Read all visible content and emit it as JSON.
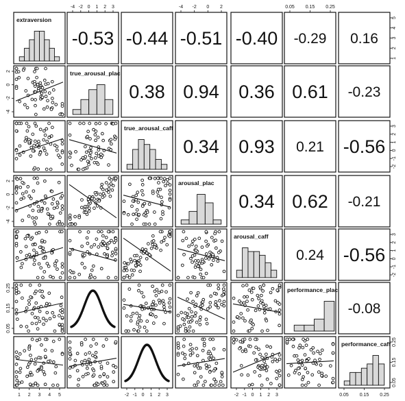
{
  "chart_data": {
    "type": "scatter-matrix",
    "variables": [
      "extraversion",
      "true_arousal_plac",
      "true_arousal_caff",
      "arousal_plac",
      "arousal_caff",
      "performance_plac",
      "performance_caff"
    ],
    "correlations": [
      [
        null,
        "-0.53",
        "-0.44",
        "-0.51",
        "-0.40",
        "-0.29",
        "0.16"
      ],
      [
        null,
        null,
        "0.38",
        "0.94",
        "0.36",
        "0.61",
        "-0.23"
      ],
      [
        null,
        null,
        null,
        "0.34",
        "0.93",
        "0.21",
        "-0.56"
      ],
      [
        null,
        null,
        null,
        null,
        "0.34",
        "0.62",
        "-0.21"
      ],
      [
        null,
        null,
        null,
        null,
        null,
        "0.24",
        "-0.56"
      ],
      [
        null,
        null,
        null,
        null,
        null,
        null,
        "-0.08"
      ]
    ],
    "histograms": [
      [
        1,
        3,
        5,
        7,
        7,
        5,
        3,
        1
      ],
      [
        1,
        3,
        5,
        6,
        3
      ],
      [
        1,
        4,
        6,
        5,
        4,
        2,
        1
      ],
      [
        1,
        3,
        7,
        5,
        1
      ],
      [
        2,
        8,
        7,
        7,
        6,
        4,
        2
      ],
      [
        1,
        1,
        2,
        5
      ],
      [
        1,
        3,
        3,
        4,
        5,
        7,
        5
      ]
    ],
    "axes": {
      "top": [
        {
          "col": 1,
          "ticks": [
            "-4",
            "-2",
            "0",
            "1",
            "2",
            "3"
          ]
        },
        {
          "col": 3,
          "ticks": [
            "-4",
            "-2",
            "0",
            "2"
          ]
        },
        {
          "col": 5,
          "ticks": [
            "0.05",
            "0.15",
            "0.25"
          ]
        }
      ],
      "bottom": [
        {
          "col": 0,
          "ticks": [
            "1",
            "2",
            "3",
            "4",
            "5"
          ]
        },
        {
          "col": 2,
          "ticks": [
            "-2",
            "-1",
            "0",
            "1",
            "2",
            "3"
          ]
        },
        {
          "col": 4,
          "ticks": [
            "-2",
            "-1",
            "0",
            "1",
            "2",
            "3"
          ]
        },
        {
          "col": 6,
          "ticks": [
            "0.05",
            "0.15",
            "0.25"
          ]
        }
      ],
      "left": [
        {
          "row": 1,
          "ticks": [
            "-4",
            "-2",
            "0",
            "2"
          ]
        },
        {
          "row": 3,
          "ticks": [
            "-4",
            "-2",
            "0",
            "2"
          ]
        },
        {
          "row": 5,
          "ticks": [
            "0.05",
            "0.15",
            "0.25"
          ]
        }
      ],
      "right": [
        {
          "row": 0,
          "ticks": [
            "1",
            "2",
            "3",
            "4",
            "5"
          ]
        },
        {
          "row": 2,
          "ticks": [
            "-2",
            "-1",
            "0",
            "1",
            "2",
            "3"
          ]
        },
        {
          "row": 4,
          "ticks": [
            "-2",
            "-1",
            "0",
            "1",
            "2",
            "3"
          ]
        },
        {
          "row": 6,
          "ticks": [
            "0.05",
            "0.15",
            "0.25"
          ]
        }
      ]
    },
    "lower_panel_style": {
      "row1col0": "negative trend",
      "row5col1": "inverted-u curve",
      "row6col2": "inverted-u curve"
    },
    "colors": {
      "ink": "#111111",
      "bar_fill": "#d9d9d9",
      "background": "#ffffff"
    }
  }
}
